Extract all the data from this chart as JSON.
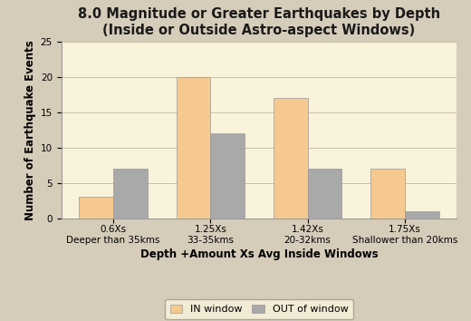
{
  "title_line1": "8.0 Magnitude or Greater Earthquakes by Depth",
  "title_line2": "(Inside or Outside Astro-aspect Windows)",
  "xlabel": "Depth +Amount Xs Avg Inside Windows",
  "ylabel": "Number of Earthquake Events",
  "categories_line1": [
    "0.6Xs",
    "1.25Xs",
    "1.42Xs",
    "1.75Xs"
  ],
  "categories_line2": [
    "Deeper than 35kms",
    "33-35kms",
    "20-32kms",
    "Shallower than 20kms"
  ],
  "in_window": [
    3,
    20,
    17,
    7
  ],
  "out_window": [
    7,
    12,
    7,
    1
  ],
  "in_color": "#F5C990",
  "out_color": "#A9A9A9",
  "plot_bg_color": "#FAF3DC",
  "fig_bg_color": "#D6CCBA",
  "ylim": [
    0,
    25
  ],
  "yticks": [
    0,
    5,
    10,
    15,
    20,
    25
  ],
  "bar_width": 0.35,
  "legend_labels": [
    "IN window",
    "OUT of window"
  ],
  "title_fontsize": 10.5,
  "axis_label_fontsize": 8.5,
  "tick_fontsize": 7.5,
  "legend_fontsize": 8
}
